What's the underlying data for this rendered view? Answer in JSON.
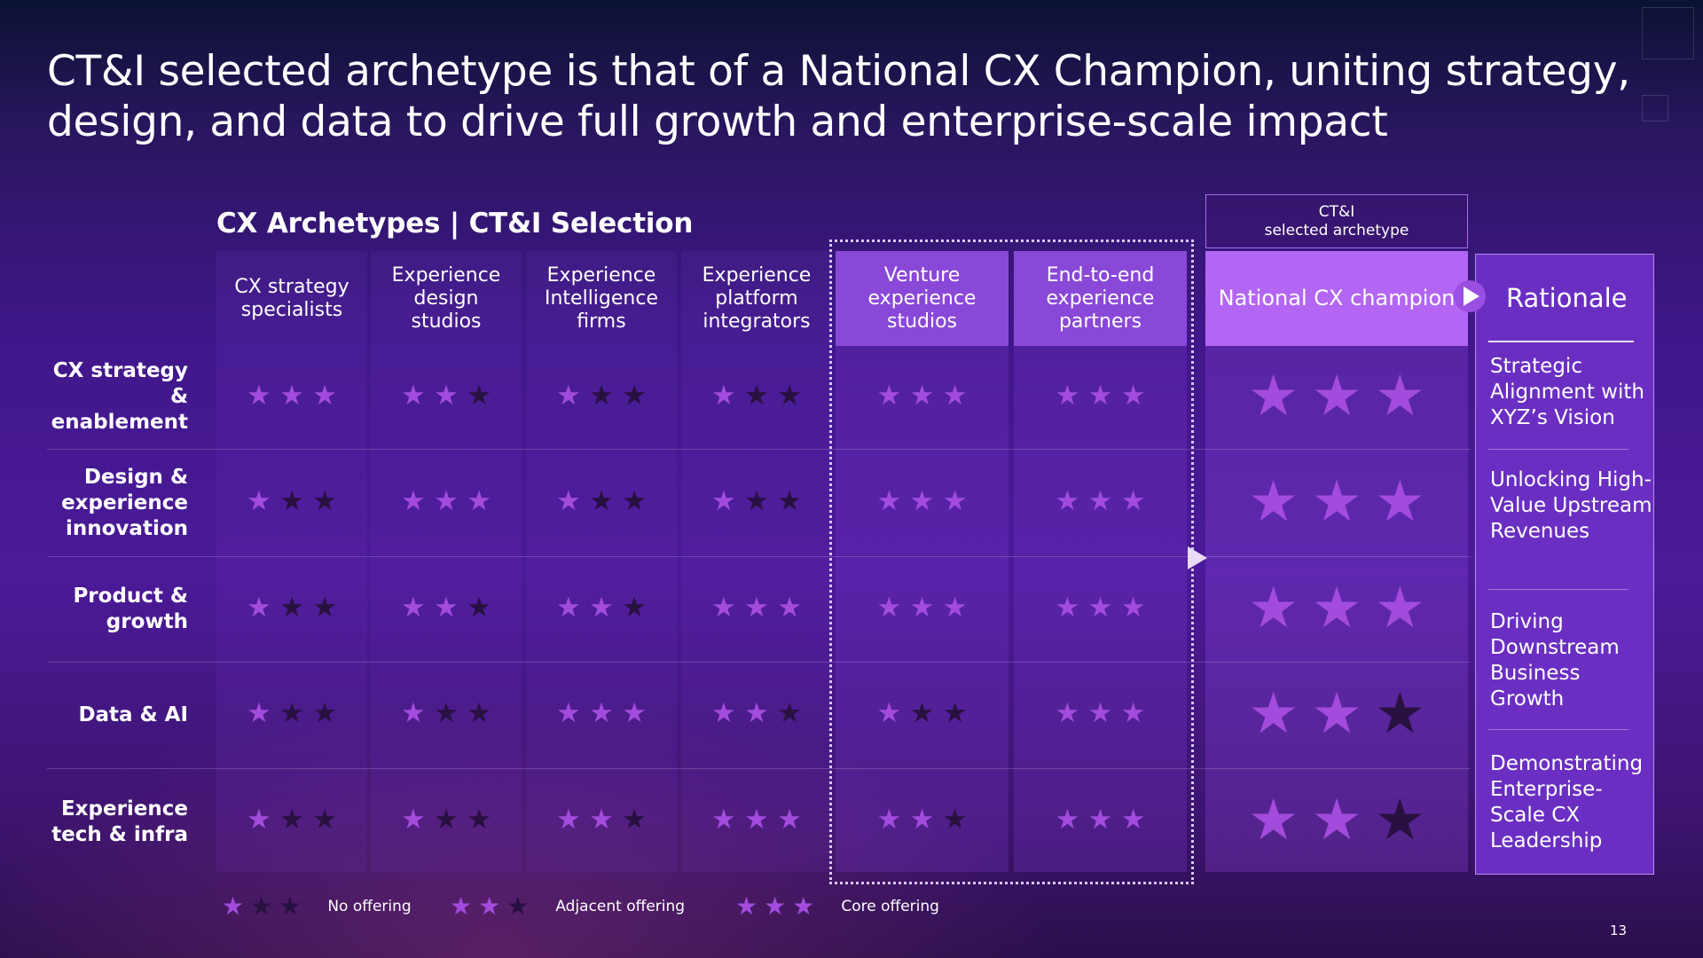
{
  "title": "CT&I selected archetype is that of a National CX Champion, uniting strategy, design, and data to drive full growth and enterprise-scale impact",
  "subtitle": "CX Archetypes | CT&I Selection",
  "selected_tag": {
    "line1": "CT&I",
    "line2": "selected archetype"
  },
  "columns": [
    {
      "label": "CX strategy specialists",
      "style": "normal"
    },
    {
      "label": "Experience design studios",
      "style": "normal"
    },
    {
      "label": "Experience Intelligence firms",
      "style": "normal"
    },
    {
      "label": "Experience platform integrators",
      "style": "normal"
    },
    {
      "label": "Venture experience studios",
      "style": "highlight"
    },
    {
      "label": "End-to-end experience partners",
      "style": "highlight"
    },
    {
      "label": "National CX champion",
      "style": "selected"
    }
  ],
  "rows": [
    {
      "label": "CX strategy & enablement",
      "ratings": [
        3,
        2,
        1,
        1,
        3,
        3,
        3
      ]
    },
    {
      "label": "Design & experience innovation",
      "ratings": [
        1,
        3,
        1,
        1,
        3,
        3,
        3
      ]
    },
    {
      "label": "Product & growth",
      "ratings": [
        1,
        2,
        2,
        3,
        3,
        3,
        3
      ]
    },
    {
      "label": "Data & AI",
      "ratings": [
        1,
        1,
        3,
        2,
        1,
        3,
        2
      ]
    },
    {
      "label": "Experience tech & infra",
      "ratings": [
        1,
        1,
        2,
        3,
        2,
        3,
        2
      ]
    }
  ],
  "rationale": {
    "title": "Rationale",
    "items": [
      "Strategic Alignment with XYZ’s Vision",
      "Unlocking High-Value Upstream Revenues",
      "Driving Downstream Business Growth",
      "Demonstrating Enterprise-Scale CX Leadership"
    ]
  },
  "legend": [
    {
      "label": "No offering",
      "stars": 1
    },
    {
      "label": "Adjacent offering",
      "stars": 2
    },
    {
      "label": "Core offering",
      "stars": 3
    }
  ],
  "page_number": "13",
  "colors": {
    "star_on": "#a24bdc",
    "star_off": "#281040",
    "highlight": "#8a48d8",
    "selected": "#b366f3"
  },
  "icons": {
    "rating": "star-icon",
    "arrow": "play-arrow-icon"
  }
}
